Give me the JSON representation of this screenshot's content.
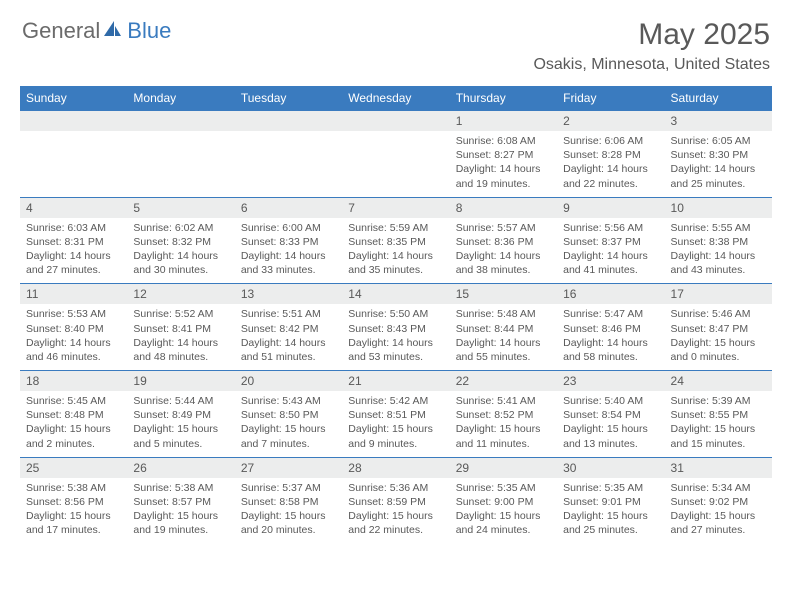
{
  "brand": {
    "part1": "General",
    "part2": "Blue"
  },
  "title": "May 2025",
  "location": "Osakis, Minnesota, United States",
  "colors": {
    "accent": "#3a7bbf",
    "text": "#595959",
    "row_bg": "#eceded"
  },
  "day_names": [
    "Sunday",
    "Monday",
    "Tuesday",
    "Wednesday",
    "Thursday",
    "Friday",
    "Saturday"
  ],
  "weeks": [
    [
      null,
      null,
      null,
      null,
      {
        "n": "1",
        "sr": "Sunrise: 6:08 AM",
        "ss": "Sunset: 8:27 PM",
        "d1": "Daylight: 14 hours",
        "d2": "and 19 minutes."
      },
      {
        "n": "2",
        "sr": "Sunrise: 6:06 AM",
        "ss": "Sunset: 8:28 PM",
        "d1": "Daylight: 14 hours",
        "d2": "and 22 minutes."
      },
      {
        "n": "3",
        "sr": "Sunrise: 6:05 AM",
        "ss": "Sunset: 8:30 PM",
        "d1": "Daylight: 14 hours",
        "d2": "and 25 minutes."
      }
    ],
    [
      {
        "n": "4",
        "sr": "Sunrise: 6:03 AM",
        "ss": "Sunset: 8:31 PM",
        "d1": "Daylight: 14 hours",
        "d2": "and 27 minutes."
      },
      {
        "n": "5",
        "sr": "Sunrise: 6:02 AM",
        "ss": "Sunset: 8:32 PM",
        "d1": "Daylight: 14 hours",
        "d2": "and 30 minutes."
      },
      {
        "n": "6",
        "sr": "Sunrise: 6:00 AM",
        "ss": "Sunset: 8:33 PM",
        "d1": "Daylight: 14 hours",
        "d2": "and 33 minutes."
      },
      {
        "n": "7",
        "sr": "Sunrise: 5:59 AM",
        "ss": "Sunset: 8:35 PM",
        "d1": "Daylight: 14 hours",
        "d2": "and 35 minutes."
      },
      {
        "n": "8",
        "sr": "Sunrise: 5:57 AM",
        "ss": "Sunset: 8:36 PM",
        "d1": "Daylight: 14 hours",
        "d2": "and 38 minutes."
      },
      {
        "n": "9",
        "sr": "Sunrise: 5:56 AM",
        "ss": "Sunset: 8:37 PM",
        "d1": "Daylight: 14 hours",
        "d2": "and 41 minutes."
      },
      {
        "n": "10",
        "sr": "Sunrise: 5:55 AM",
        "ss": "Sunset: 8:38 PM",
        "d1": "Daylight: 14 hours",
        "d2": "and 43 minutes."
      }
    ],
    [
      {
        "n": "11",
        "sr": "Sunrise: 5:53 AM",
        "ss": "Sunset: 8:40 PM",
        "d1": "Daylight: 14 hours",
        "d2": "and 46 minutes."
      },
      {
        "n": "12",
        "sr": "Sunrise: 5:52 AM",
        "ss": "Sunset: 8:41 PM",
        "d1": "Daylight: 14 hours",
        "d2": "and 48 minutes."
      },
      {
        "n": "13",
        "sr": "Sunrise: 5:51 AM",
        "ss": "Sunset: 8:42 PM",
        "d1": "Daylight: 14 hours",
        "d2": "and 51 minutes."
      },
      {
        "n": "14",
        "sr": "Sunrise: 5:50 AM",
        "ss": "Sunset: 8:43 PM",
        "d1": "Daylight: 14 hours",
        "d2": "and 53 minutes."
      },
      {
        "n": "15",
        "sr": "Sunrise: 5:48 AM",
        "ss": "Sunset: 8:44 PM",
        "d1": "Daylight: 14 hours",
        "d2": "and 55 minutes."
      },
      {
        "n": "16",
        "sr": "Sunrise: 5:47 AM",
        "ss": "Sunset: 8:46 PM",
        "d1": "Daylight: 14 hours",
        "d2": "and 58 minutes."
      },
      {
        "n": "17",
        "sr": "Sunrise: 5:46 AM",
        "ss": "Sunset: 8:47 PM",
        "d1": "Daylight: 15 hours",
        "d2": "and 0 minutes."
      }
    ],
    [
      {
        "n": "18",
        "sr": "Sunrise: 5:45 AM",
        "ss": "Sunset: 8:48 PM",
        "d1": "Daylight: 15 hours",
        "d2": "and 2 minutes."
      },
      {
        "n": "19",
        "sr": "Sunrise: 5:44 AM",
        "ss": "Sunset: 8:49 PM",
        "d1": "Daylight: 15 hours",
        "d2": "and 5 minutes."
      },
      {
        "n": "20",
        "sr": "Sunrise: 5:43 AM",
        "ss": "Sunset: 8:50 PM",
        "d1": "Daylight: 15 hours",
        "d2": "and 7 minutes."
      },
      {
        "n": "21",
        "sr": "Sunrise: 5:42 AM",
        "ss": "Sunset: 8:51 PM",
        "d1": "Daylight: 15 hours",
        "d2": "and 9 minutes."
      },
      {
        "n": "22",
        "sr": "Sunrise: 5:41 AM",
        "ss": "Sunset: 8:52 PM",
        "d1": "Daylight: 15 hours",
        "d2": "and 11 minutes."
      },
      {
        "n": "23",
        "sr": "Sunrise: 5:40 AM",
        "ss": "Sunset: 8:54 PM",
        "d1": "Daylight: 15 hours",
        "d2": "and 13 minutes."
      },
      {
        "n": "24",
        "sr": "Sunrise: 5:39 AM",
        "ss": "Sunset: 8:55 PM",
        "d1": "Daylight: 15 hours",
        "d2": "and 15 minutes."
      }
    ],
    [
      {
        "n": "25",
        "sr": "Sunrise: 5:38 AM",
        "ss": "Sunset: 8:56 PM",
        "d1": "Daylight: 15 hours",
        "d2": "and 17 minutes."
      },
      {
        "n": "26",
        "sr": "Sunrise: 5:38 AM",
        "ss": "Sunset: 8:57 PM",
        "d1": "Daylight: 15 hours",
        "d2": "and 19 minutes."
      },
      {
        "n": "27",
        "sr": "Sunrise: 5:37 AM",
        "ss": "Sunset: 8:58 PM",
        "d1": "Daylight: 15 hours",
        "d2": "and 20 minutes."
      },
      {
        "n": "28",
        "sr": "Sunrise: 5:36 AM",
        "ss": "Sunset: 8:59 PM",
        "d1": "Daylight: 15 hours",
        "d2": "and 22 minutes."
      },
      {
        "n": "29",
        "sr": "Sunrise: 5:35 AM",
        "ss": "Sunset: 9:00 PM",
        "d1": "Daylight: 15 hours",
        "d2": "and 24 minutes."
      },
      {
        "n": "30",
        "sr": "Sunrise: 5:35 AM",
        "ss": "Sunset: 9:01 PM",
        "d1": "Daylight: 15 hours",
        "d2": "and 25 minutes."
      },
      {
        "n": "31",
        "sr": "Sunrise: 5:34 AM",
        "ss": "Sunset: 9:02 PM",
        "d1": "Daylight: 15 hours",
        "d2": "and 27 minutes."
      }
    ]
  ]
}
